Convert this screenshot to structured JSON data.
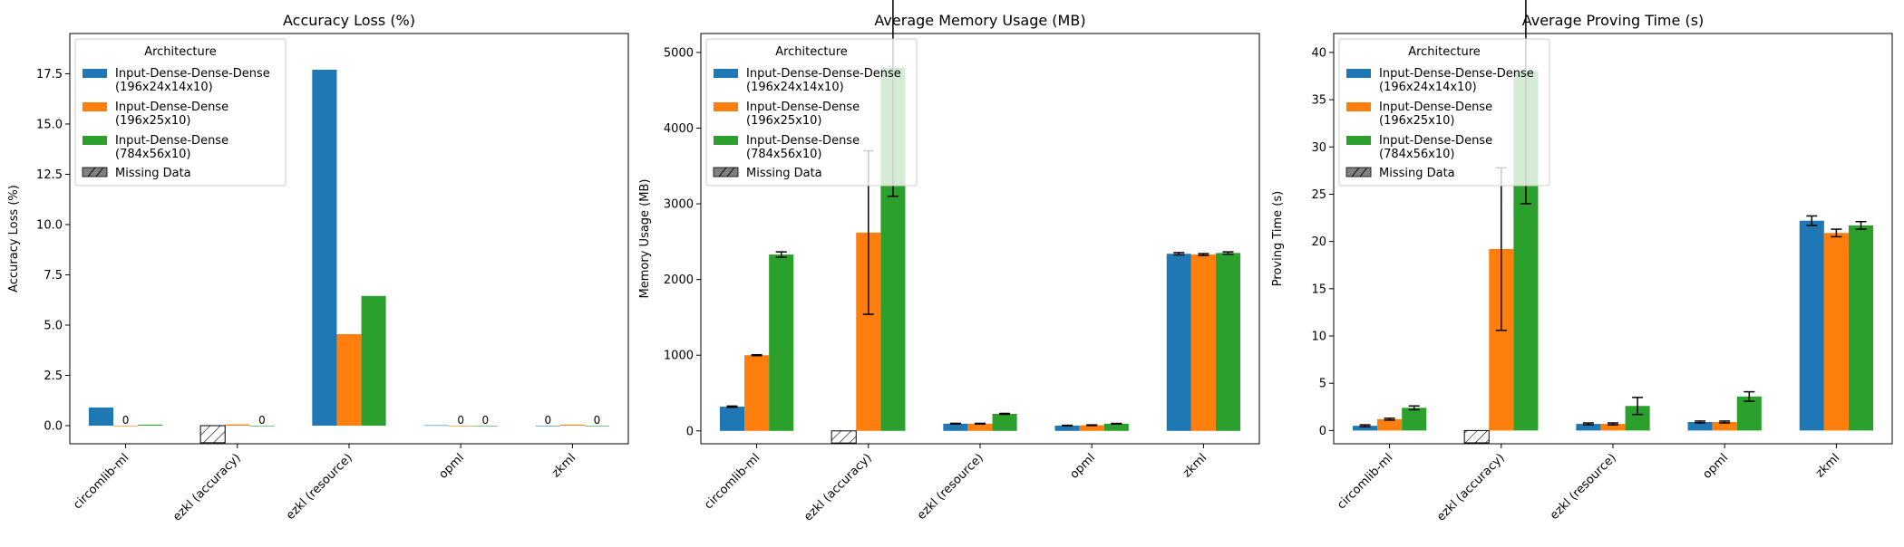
{
  "chart_data": [
    {
      "type": "bar",
      "title": "Accuracy Loss (%)",
      "xlabel": "",
      "ylabel": "Accuracy Loss (%)",
      "ylim": [
        -0.9,
        19.5
      ],
      "yticks": [
        0.0,
        2.5,
        5.0,
        7.5,
        10.0,
        12.5,
        15.0,
        17.5
      ],
      "ytick_labels": [
        "0.0",
        "2.5",
        "5.0",
        "7.5",
        "10.0",
        "12.5",
        "15.0",
        "17.5"
      ],
      "categories": [
        "circomlib-ml",
        "ezkl (accuracy)",
        "ezkl (resource)",
        "opml",
        "zkml"
      ],
      "series": [
        {
          "name": "Input-Dense-Dense-Dense\n(196x24x14x10)",
          "values": [
            0.9,
            null,
            17.7,
            0.02,
            0
          ],
          "errors": [
            0,
            null,
            0,
            0,
            0
          ]
        },
        {
          "name": "Input-Dense-Dense\n(196x25x10)",
          "values": [
            0,
            0.06,
            4.55,
            0,
            0.05
          ],
          "errors": [
            0,
            0,
            0,
            0,
            0
          ]
        },
        {
          "name": "Input-Dense-Dense\n(784x56x10)",
          "values": [
            0.05,
            0,
            6.45,
            0,
            0
          ],
          "errors": [
            0,
            0,
            0,
            0,
            0
          ]
        }
      ],
      "missing": [
        {
          "category": "ezkl (accuracy)",
          "series_index": 0,
          "size": -0.85
        }
      ],
      "zero_labels": [
        {
          "category": "circomlib-ml",
          "series_index": 1,
          "text": "0"
        },
        {
          "category": "ezkl (accuracy)",
          "series_index": 2,
          "text": "0"
        },
        {
          "category": "opml",
          "series_index": 1,
          "text": "0"
        },
        {
          "category": "opml",
          "series_index": 2,
          "text": "0"
        },
        {
          "category": "zkml",
          "series_index": 0,
          "text": "0"
        },
        {
          "category": "zkml",
          "series_index": 2,
          "text": "0"
        }
      ],
      "legend": {
        "title": "Architecture",
        "position": "top-left",
        "missing_label": "Missing Data"
      }
    },
    {
      "type": "bar",
      "title": "Average Memory Usage (MB)",
      "xlabel": "",
      "ylabel": "Memory Usage (MB)",
      "ylim": [
        -170,
        5250
      ],
      "yticks": [
        0,
        1000,
        2000,
        3000,
        4000,
        5000
      ],
      "ytick_labels": [
        "0",
        "1000",
        "2000",
        "3000",
        "4000",
        "5000"
      ],
      "categories": [
        "circomlib-ml",
        "ezkl (accuracy)",
        "ezkl (resource)",
        "opml",
        "zkml"
      ],
      "series": [
        {
          "name": "Input-Dense-Dense-Dense\n(196x24x14x10)",
          "values": [
            320,
            null,
            95,
            70,
            2340
          ],
          "errors": [
            8,
            null,
            5,
            4,
            15
          ]
        },
        {
          "name": "Input-Dense-Dense\n(196x25x10)",
          "values": [
            1000,
            2620,
            95,
            75,
            2330
          ],
          "errors": [
            6,
            1080,
            5,
            4,
            12
          ]
        },
        {
          "name": "Input-Dense-Dense\n(784x56x10)",
          "values": [
            2330,
            4800,
            225,
            95,
            2350
          ],
          "errors": [
            35,
            1700,
            6,
            4,
            15
          ]
        }
      ],
      "missing": [
        {
          "category": "ezkl (accuracy)",
          "series_index": 0,
          "size": -160
        }
      ],
      "zero_labels": [],
      "legend": {
        "title": "Architecture",
        "position": "top-left",
        "missing_label": "Missing Data"
      }
    },
    {
      "type": "bar",
      "title": "Average Proving Time (s)",
      "xlabel": "",
      "ylabel": "Proving Time (s)",
      "ylim": [
        -1.4,
        42
      ],
      "yticks": [
        0,
        5,
        10,
        15,
        20,
        25,
        30,
        35,
        40
      ],
      "ytick_labels": [
        "0",
        "5",
        "10",
        "15",
        "20",
        "25",
        "30",
        "35",
        "40"
      ],
      "categories": [
        "circomlib-ml",
        "ezkl (accuracy)",
        "ezkl (resource)",
        "opml",
        "zkml"
      ],
      "series": [
        {
          "name": "Input-Dense-Dense-Dense\n(196x24x14x10)",
          "values": [
            0.5,
            null,
            0.7,
            0.9,
            22.2
          ],
          "errors": [
            0.1,
            null,
            0.1,
            0.1,
            0.5
          ]
        },
        {
          "name": "Input-Dense-Dense\n(196x25x10)",
          "values": [
            1.2,
            19.2,
            0.7,
            0.9,
            20.9
          ],
          "errors": [
            0.1,
            8.6,
            0.1,
            0.1,
            0.4
          ]
        },
        {
          "name": "Input-Dense-Dense\n(784x56x10)",
          "values": [
            2.4,
            38.0,
            2.6,
            3.6,
            21.7
          ],
          "errors": [
            0.2,
            14.0,
            0.9,
            0.5,
            0.4
          ]
        }
      ],
      "missing": [
        {
          "category": "ezkl (accuracy)",
          "series_index": 0,
          "size": -1.3
        }
      ],
      "zero_labels": [],
      "legend": {
        "title": "Architecture",
        "position": "top-left",
        "missing_label": "Missing Data"
      }
    }
  ],
  "colors": {
    "series": [
      "#1f77b4",
      "#ff7f0e",
      "#2ca02c"
    ],
    "missing_fill": "#808080",
    "missing_edge": "#000000"
  }
}
